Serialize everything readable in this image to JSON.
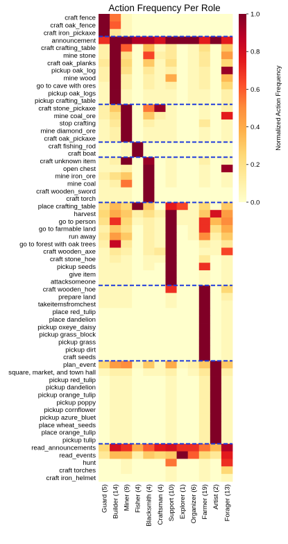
{
  "chart_data": {
    "type": "heatmap",
    "title": "Action Frequency Per Role",
    "colorbar": {
      "label": "Normalized Action Frequency",
      "range": [
        0,
        1
      ],
      "ticks": [
        "0.0",
        "0.2",
        "0.4",
        "0.6",
        "0.8",
        "1.0"
      ],
      "colormap": "YlOrRd"
    },
    "columns": [
      "Guard (5)",
      "Builder (14)",
      "Miner (9)",
      "Fisher (4)",
      "Blacksmith (4)",
      "Craftsman (4)",
      "Support (10)",
      "Explorer (1)",
      "Organizer (6)",
      "Farmer (19)",
      "Artist (2)",
      "Forager (13)"
    ],
    "rows": [
      "craft fence",
      "craft oak_fence",
      "craft iron_pickaxe",
      "announcement",
      "craft crafting_table",
      "mine stone",
      "craft oak_planks",
      "pickup oak_log",
      "mine wood",
      "go to cave with ores",
      "pickup oak_logs",
      "pickup crafting_table",
      "craft stone_pickaxe",
      "mine coal_ore",
      "stop crafting",
      "mine diamond_ore",
      "craft oak_pickaxe",
      "craft fishing_rod",
      "craft boat",
      "craft unknown item",
      "open chest",
      "mine iron_ore",
      "mine coal",
      "craft wooden_sword",
      "craft torch",
      "place crafting_table",
      "harvest",
      "go to person",
      "go to farmable land",
      "run away",
      "go to forest with oak trees",
      "craft wooden_axe",
      "craft stone_hoe",
      "pickup seeds",
      "give item",
      "attacksomeone",
      "craft wooden_hoe",
      "prepare land",
      "takeitemsfromchest",
      "place red_tulip",
      "place dandelion",
      "pickup oxeye_daisy",
      "pickup grass_block",
      "pickup grass",
      "pickup dirt",
      "craft seeds",
      "plan_event",
      "square, market, and town hall",
      "pickup red_tulip",
      "pickup dandelion",
      "pickup orange_tulip",
      "pickup poppy",
      "pickup cornflower",
      "pickup azure_bluet",
      "place wheat_seeds",
      "place orange_tulip",
      "pickup tulip",
      "read_announcements",
      "read_events",
      "hunt",
      "craft torches",
      "craft iron_helmet"
    ],
    "group_separators_after_row": [
      2,
      11,
      16,
      18,
      24,
      35,
      45,
      56
    ],
    "values": [
      [
        1.0,
        0.55,
        0.05,
        0.0,
        0.0,
        0.0,
        0.0,
        0.0,
        0.0,
        0.0,
        0.0,
        0.0
      ],
      [
        1.0,
        0.6,
        0.05,
        0.0,
        0.0,
        0.0,
        0.0,
        0.0,
        0.0,
        0.0,
        0.0,
        0.0
      ],
      [
        1.0,
        0.15,
        0.05,
        0.0,
        0.0,
        0.0,
        0.0,
        0.0,
        0.0,
        0.0,
        0.0,
        0.0
      ],
      [
        0.7,
        1.0,
        1.0,
        0.9,
        0.9,
        0.8,
        1.0,
        1.0,
        1.0,
        0.75,
        1.0,
        0.75
      ],
      [
        0.1,
        1.0,
        0.6,
        0.0,
        0.35,
        0.05,
        0.15,
        0.0,
        0.05,
        0.2,
        0.0,
        0.3
      ],
      [
        0.1,
        1.0,
        0.2,
        0.0,
        0.65,
        0.1,
        0.15,
        0.0,
        0.05,
        0.15,
        0.0,
        0.45
      ],
      [
        0.15,
        1.0,
        0.25,
        0.0,
        0.3,
        0.05,
        0.2,
        0.0,
        0.05,
        0.15,
        0.0,
        0.25
      ],
      [
        0.1,
        1.0,
        0.2,
        0.0,
        0.15,
        0.05,
        0.1,
        0.0,
        0.05,
        0.1,
        0.0,
        0.95
      ],
      [
        0.1,
        1.0,
        0.1,
        0.0,
        0.1,
        0.05,
        0.4,
        0.0,
        0.05,
        0.1,
        0.0,
        0.35
      ],
      [
        0.05,
        1.0,
        0.1,
        0.0,
        0.1,
        0.05,
        0.1,
        0.0,
        0.05,
        0.1,
        0.0,
        0.25
      ],
      [
        0.05,
        1.0,
        0.05,
        0.0,
        0.05,
        0.05,
        0.05,
        0.0,
        0.05,
        0.05,
        0.0,
        0.1
      ],
      [
        0.05,
        1.0,
        0.05,
        0.0,
        0.05,
        0.05,
        0.05,
        0.0,
        0.05,
        0.05,
        0.0,
        0.1
      ],
      [
        0.1,
        0.3,
        1.0,
        0.0,
        0.55,
        0.95,
        0.05,
        0.0,
        0.0,
        0.05,
        0.0,
        0.1
      ],
      [
        0.1,
        0.2,
        1.0,
        0.0,
        0.3,
        0.1,
        0.05,
        0.0,
        0.0,
        0.05,
        0.0,
        0.75
      ],
      [
        0.05,
        0.15,
        1.0,
        0.0,
        0.1,
        0.05,
        0.05,
        0.0,
        0.0,
        0.15,
        0.0,
        0.05
      ],
      [
        0.05,
        0.1,
        1.0,
        0.0,
        0.05,
        0.05,
        0.05,
        0.0,
        0.0,
        0.05,
        0.0,
        0.05
      ],
      [
        0.05,
        0.1,
        1.0,
        0.0,
        0.05,
        0.05,
        0.05,
        0.0,
        0.0,
        0.05,
        0.0,
        0.05
      ],
      [
        0.0,
        0.0,
        0.05,
        1.0,
        0.0,
        0.0,
        0.0,
        0.0,
        0.0,
        0.0,
        0.0,
        0.0
      ],
      [
        0.0,
        0.0,
        0.05,
        1.0,
        0.0,
        0.0,
        0.0,
        0.0,
        0.0,
        0.0,
        0.0,
        0.0
      ],
      [
        0.05,
        0.1,
        1.0,
        0.0,
        0.95,
        0.0,
        0.05,
        0.0,
        0.0,
        0.1,
        0.0,
        0.05
      ],
      [
        0.05,
        0.05,
        0.1,
        0.0,
        1.0,
        0.0,
        0.05,
        0.0,
        0.0,
        0.05,
        0.0,
        0.95
      ],
      [
        0.1,
        0.2,
        0.3,
        0.0,
        1.0,
        0.0,
        0.05,
        0.0,
        0.0,
        0.05,
        0.0,
        0.05
      ],
      [
        0.05,
        0.1,
        0.55,
        0.0,
        1.0,
        0.0,
        0.05,
        0.0,
        0.0,
        0.05,
        0.0,
        0.05
      ],
      [
        0.05,
        0.05,
        0.05,
        0.0,
        1.0,
        0.0,
        0.0,
        0.0,
        0.0,
        0.0,
        0.0,
        0.0
      ],
      [
        0.05,
        0.05,
        0.05,
        0.0,
        1.0,
        0.0,
        0.0,
        0.0,
        0.0,
        0.0,
        0.0,
        0.0
      ],
      [
        0.2,
        0.35,
        0.25,
        1.0,
        0.3,
        0.0,
        0.75,
        0.65,
        0.05,
        0.25,
        0.0,
        0.3
      ],
      [
        0.25,
        0.4,
        0.3,
        0.1,
        0.2,
        0.1,
        1.0,
        0.05,
        0.05,
        0.3,
        0.8,
        0.45
      ],
      [
        0.2,
        0.7,
        0.25,
        0.05,
        0.1,
        0.05,
        1.0,
        0.05,
        0.05,
        0.7,
        0.35,
        0.5
      ],
      [
        0.1,
        0.3,
        0.2,
        0.0,
        0.1,
        0.05,
        1.0,
        0.0,
        0.05,
        0.7,
        0.2,
        0.4
      ],
      [
        0.15,
        0.45,
        0.3,
        0.0,
        0.1,
        0.05,
        1.0,
        0.0,
        0.05,
        0.5,
        0.1,
        0.3
      ],
      [
        0.1,
        0.85,
        0.15,
        0.0,
        0.1,
        0.05,
        1.0,
        0.0,
        0.0,
        0.1,
        0.05,
        0.15
      ],
      [
        0.05,
        0.15,
        0.1,
        0.0,
        0.1,
        0.15,
        1.0,
        0.0,
        0.0,
        0.05,
        0.05,
        0.65
      ],
      [
        0.05,
        0.1,
        0.05,
        0.0,
        0.05,
        0.05,
        1.0,
        0.0,
        0.0,
        0.15,
        0.0,
        0.05
      ],
      [
        0.05,
        0.05,
        0.05,
        0.0,
        0.05,
        0.0,
        1.0,
        0.0,
        0.0,
        0.7,
        0.0,
        0.05
      ],
      [
        0.05,
        0.05,
        0.05,
        0.0,
        0.0,
        0.0,
        1.0,
        0.0,
        0.0,
        0.05,
        0.0,
        0.05
      ],
      [
        0.05,
        0.05,
        0.05,
        0.0,
        0.0,
        0.0,
        1.0,
        0.0,
        0.0,
        0.05,
        0.0,
        0.05
      ],
      [
        0.05,
        0.05,
        0.05,
        0.0,
        0.0,
        0.0,
        0.7,
        0.0,
        0.0,
        1.0,
        0.0,
        0.25
      ],
      [
        0.05,
        0.05,
        0.05,
        0.0,
        0.0,
        0.0,
        0.05,
        0.0,
        0.0,
        1.0,
        0.0,
        0.1
      ],
      [
        0.05,
        0.05,
        0.05,
        0.0,
        0.0,
        0.0,
        0.05,
        0.0,
        0.0,
        1.0,
        0.0,
        0.05
      ],
      [
        0.0,
        0.0,
        0.0,
        0.0,
        0.0,
        0.0,
        0.0,
        0.0,
        0.0,
        1.0,
        0.0,
        0.05
      ],
      [
        0.0,
        0.0,
        0.0,
        0.0,
        0.0,
        0.0,
        0.0,
        0.0,
        0.0,
        1.0,
        0.0,
        0.05
      ],
      [
        0.0,
        0.0,
        0.0,
        0.0,
        0.0,
        0.0,
        0.0,
        0.0,
        0.0,
        1.0,
        0.0,
        0.05
      ],
      [
        0.0,
        0.0,
        0.0,
        0.0,
        0.0,
        0.0,
        0.0,
        0.0,
        0.0,
        1.0,
        0.0,
        0.05
      ],
      [
        0.0,
        0.0,
        0.0,
        0.0,
        0.0,
        0.0,
        0.0,
        0.0,
        0.0,
        1.0,
        0.0,
        0.05
      ],
      [
        0.0,
        0.0,
        0.0,
        0.0,
        0.0,
        0.0,
        0.0,
        0.0,
        0.0,
        1.0,
        0.0,
        0.05
      ],
      [
        0.0,
        0.0,
        0.0,
        0.0,
        0.0,
        0.0,
        0.0,
        0.0,
        0.0,
        1.0,
        0.0,
        0.05
      ],
      [
        0.25,
        0.45,
        0.5,
        0.05,
        0.3,
        0.05,
        0.4,
        0.05,
        0.1,
        0.3,
        1.0,
        0.3
      ],
      [
        0.05,
        0.1,
        0.1,
        0.0,
        0.05,
        0.05,
        0.1,
        0.0,
        0.05,
        0.15,
        1.0,
        0.1
      ],
      [
        0.0,
        0.05,
        0.05,
        0.0,
        0.0,
        0.0,
        0.05,
        0.0,
        0.0,
        0.1,
        1.0,
        0.05
      ],
      [
        0.0,
        0.05,
        0.05,
        0.0,
        0.0,
        0.0,
        0.05,
        0.0,
        0.0,
        0.1,
        1.0,
        0.05
      ],
      [
        0.0,
        0.05,
        0.05,
        0.0,
        0.0,
        0.0,
        0.05,
        0.0,
        0.0,
        0.1,
        1.0,
        0.05
      ],
      [
        0.0,
        0.05,
        0.05,
        0.0,
        0.0,
        0.0,
        0.05,
        0.0,
        0.0,
        0.1,
        1.0,
        0.05
      ],
      [
        0.0,
        0.05,
        0.05,
        0.0,
        0.0,
        0.0,
        0.05,
        0.0,
        0.0,
        0.1,
        1.0,
        0.05
      ],
      [
        0.0,
        0.05,
        0.05,
        0.0,
        0.0,
        0.0,
        0.05,
        0.0,
        0.0,
        0.1,
        1.0,
        0.05
      ],
      [
        0.0,
        0.05,
        0.05,
        0.0,
        0.0,
        0.0,
        0.05,
        0.0,
        0.0,
        0.1,
        1.0,
        0.05
      ],
      [
        0.0,
        0.05,
        0.05,
        0.0,
        0.0,
        0.0,
        0.05,
        0.0,
        0.0,
        0.1,
        1.0,
        0.05
      ],
      [
        0.0,
        0.05,
        0.05,
        0.0,
        0.0,
        0.0,
        0.05,
        0.0,
        0.0,
        0.1,
        1.0,
        0.05
      ],
      [
        0.25,
        0.8,
        0.7,
        0.4,
        0.6,
        0.75,
        0.8,
        0.7,
        0.7,
        0.55,
        0.35,
        0.9
      ],
      [
        0.15,
        0.35,
        0.35,
        0.1,
        0.3,
        0.25,
        0.3,
        1.0,
        0.6,
        0.25,
        0.15,
        0.75
      ],
      [
        0.0,
        0.0,
        0.05,
        0.0,
        0.0,
        0.0,
        0.55,
        0.0,
        0.0,
        0.05,
        0.0,
        0.7
      ],
      [
        0.0,
        0.0,
        0.05,
        0.0,
        0.0,
        0.0,
        0.05,
        0.0,
        0.0,
        0.05,
        0.0,
        0.25
      ],
      [
        0.0,
        0.0,
        0.0,
        0.0,
        0.0,
        0.0,
        0.05,
        0.0,
        0.0,
        0.05,
        0.0,
        0.05
      ]
    ]
  }
}
